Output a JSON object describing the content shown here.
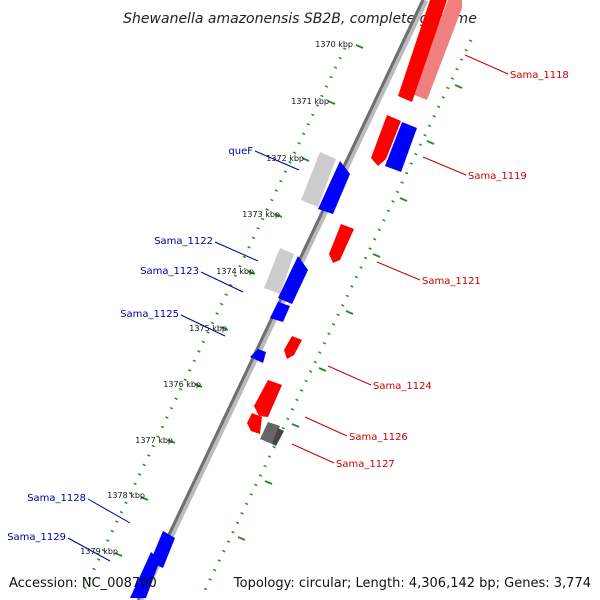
{
  "title": "Shewanella amazonensis SB2B, complete genome",
  "footer": {
    "accession": "Accession: NC_008700",
    "topology": "Topology: circular; Length: 4,306,142 bp; Genes: 3,774"
  },
  "colors": {
    "forward_gene": "#ff0000",
    "reverse_gene": "#0000ff",
    "gray_feature": "#999999",
    "tick_dots": "#2d8a2d",
    "red_label": "#cc0000",
    "blue_label": "#000099"
  },
  "ticks": [
    "1370 kbp",
    "1371 kbp",
    "1372 kbp",
    "1373 kbp",
    "1374 kbp",
    "1375 kbp",
    "1376 kbp",
    "1377 kbp",
    "1378 kbp",
    "1379 kbp"
  ],
  "gene_labels": [
    {
      "name": "Sama_1118",
      "strand": "forward"
    },
    {
      "name": "Sama_1119",
      "strand": "forward"
    },
    {
      "name": "Sama_1121",
      "strand": "forward"
    },
    {
      "name": "Sama_1124",
      "strand": "forward"
    },
    {
      "name": "Sama_1126",
      "strand": "forward"
    },
    {
      "name": "Sama_1127",
      "strand": "forward"
    },
    {
      "name": "queF",
      "strand": "reverse"
    },
    {
      "name": "Sama_1122",
      "strand": "reverse"
    },
    {
      "name": "Sama_1123",
      "strand": "reverse"
    },
    {
      "name": "Sama_1125",
      "strand": "reverse"
    },
    {
      "name": "Sama_1128",
      "strand": "reverse"
    },
    {
      "name": "Sama_1129",
      "strand": "reverse"
    }
  ]
}
